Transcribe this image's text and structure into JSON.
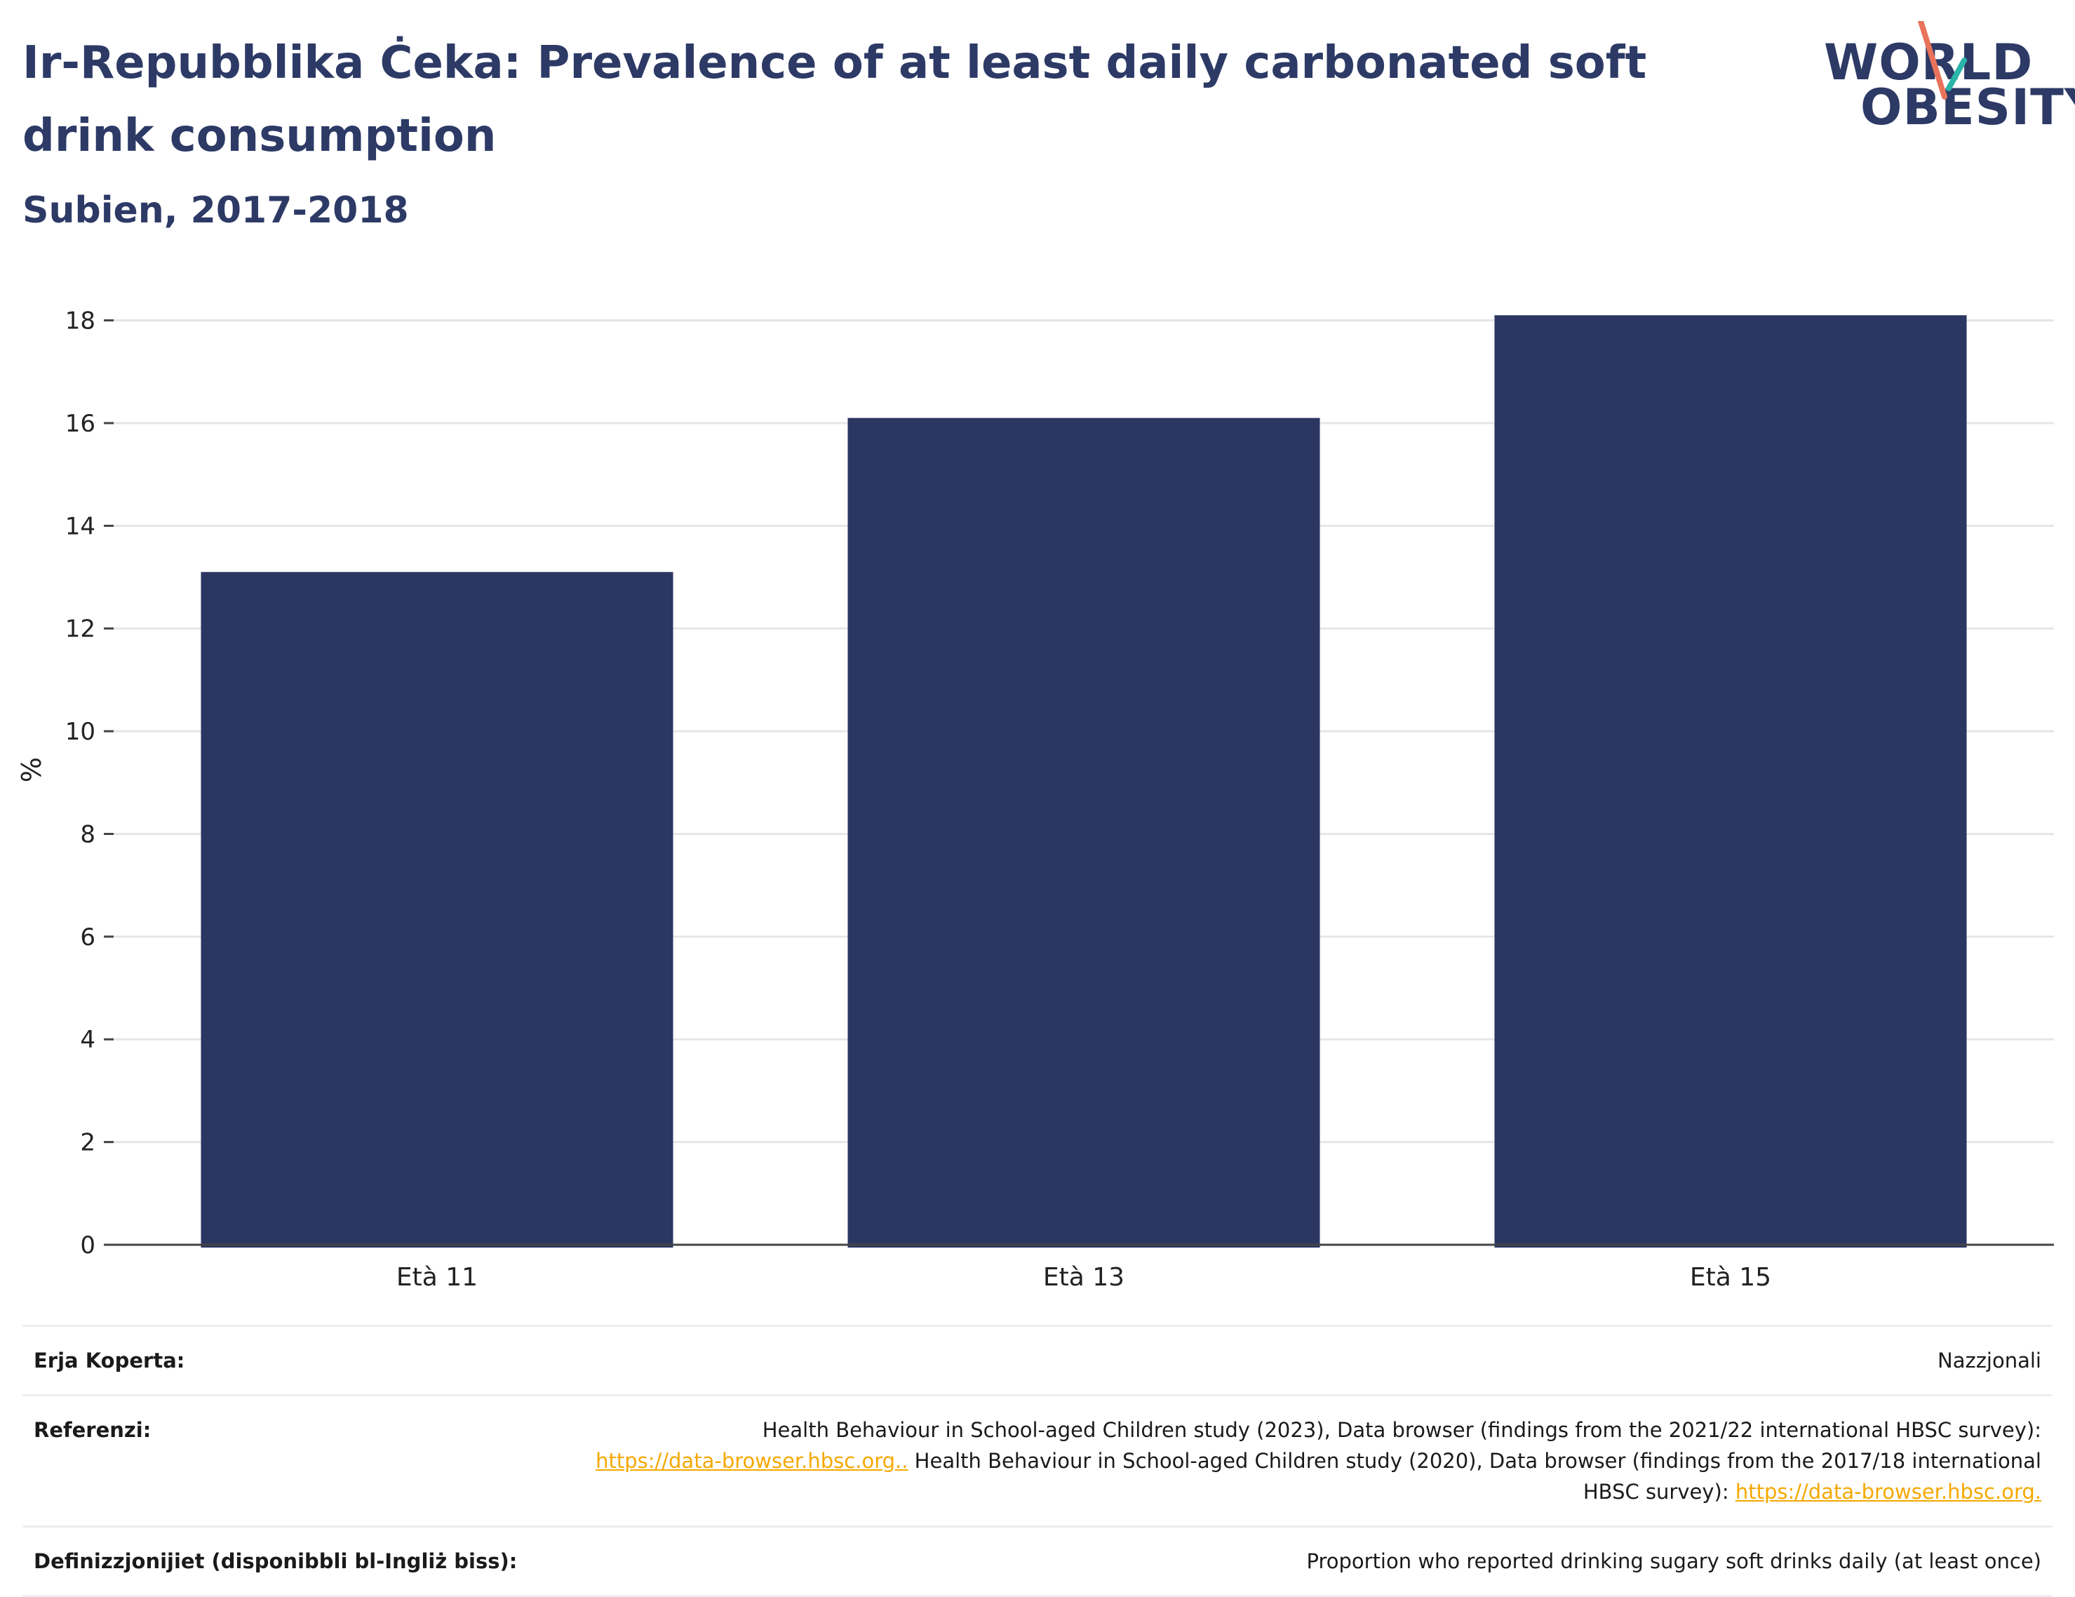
{
  "header": {
    "title": "Ir-Repubblika Ċeka: Prevalence of at least daily carbonated soft drink consumption",
    "subtitle": "Subien, 2017-2018"
  },
  "logo": {
    "line1": "WORLD",
    "line2": "OBESITY",
    "icon": "world-obesity-logo"
  },
  "chart_data": {
    "type": "bar",
    "title": "Ir-Repubblika Ċeka: Prevalence of at least daily carbonated soft drink consumption",
    "subtitle": "Subien, 2017-2018",
    "categories": [
      "Età 11",
      "Età 13",
      "Età 15"
    ],
    "values": [
      13.1,
      16.1,
      18.1
    ],
    "xlabel": "",
    "ylabel": "%",
    "ylim": [
      0,
      18.5
    ],
    "yticks": [
      0,
      2,
      4,
      6,
      8,
      10,
      12,
      14,
      16,
      18
    ],
    "grid": true,
    "bar_color": "#2b3663"
  },
  "info": {
    "coverage_label": "Erja Koperta:",
    "coverage_value": "Nazzjonali",
    "references_label": "Referenzi:",
    "ref_text_1": "Health Behaviour in School-aged Children study (2023), Data browser (findings from the 2021/22 international HBSC survey):",
    "ref_link_1": "https://data-browser.hbsc.org..",
    "ref_text_2": " Health Behaviour in School-aged Children study (2020), Data browser (findings from the 2017/18 international HBSC survey):",
    "ref_link_2": "https://data-browser.hbsc.org.",
    "definitions_label": "Definizzjonijiet (disponibbli bl-Ingliż biss):",
    "definitions_value": "Proportion who reported drinking sugary soft drinks daily (at least once)"
  }
}
